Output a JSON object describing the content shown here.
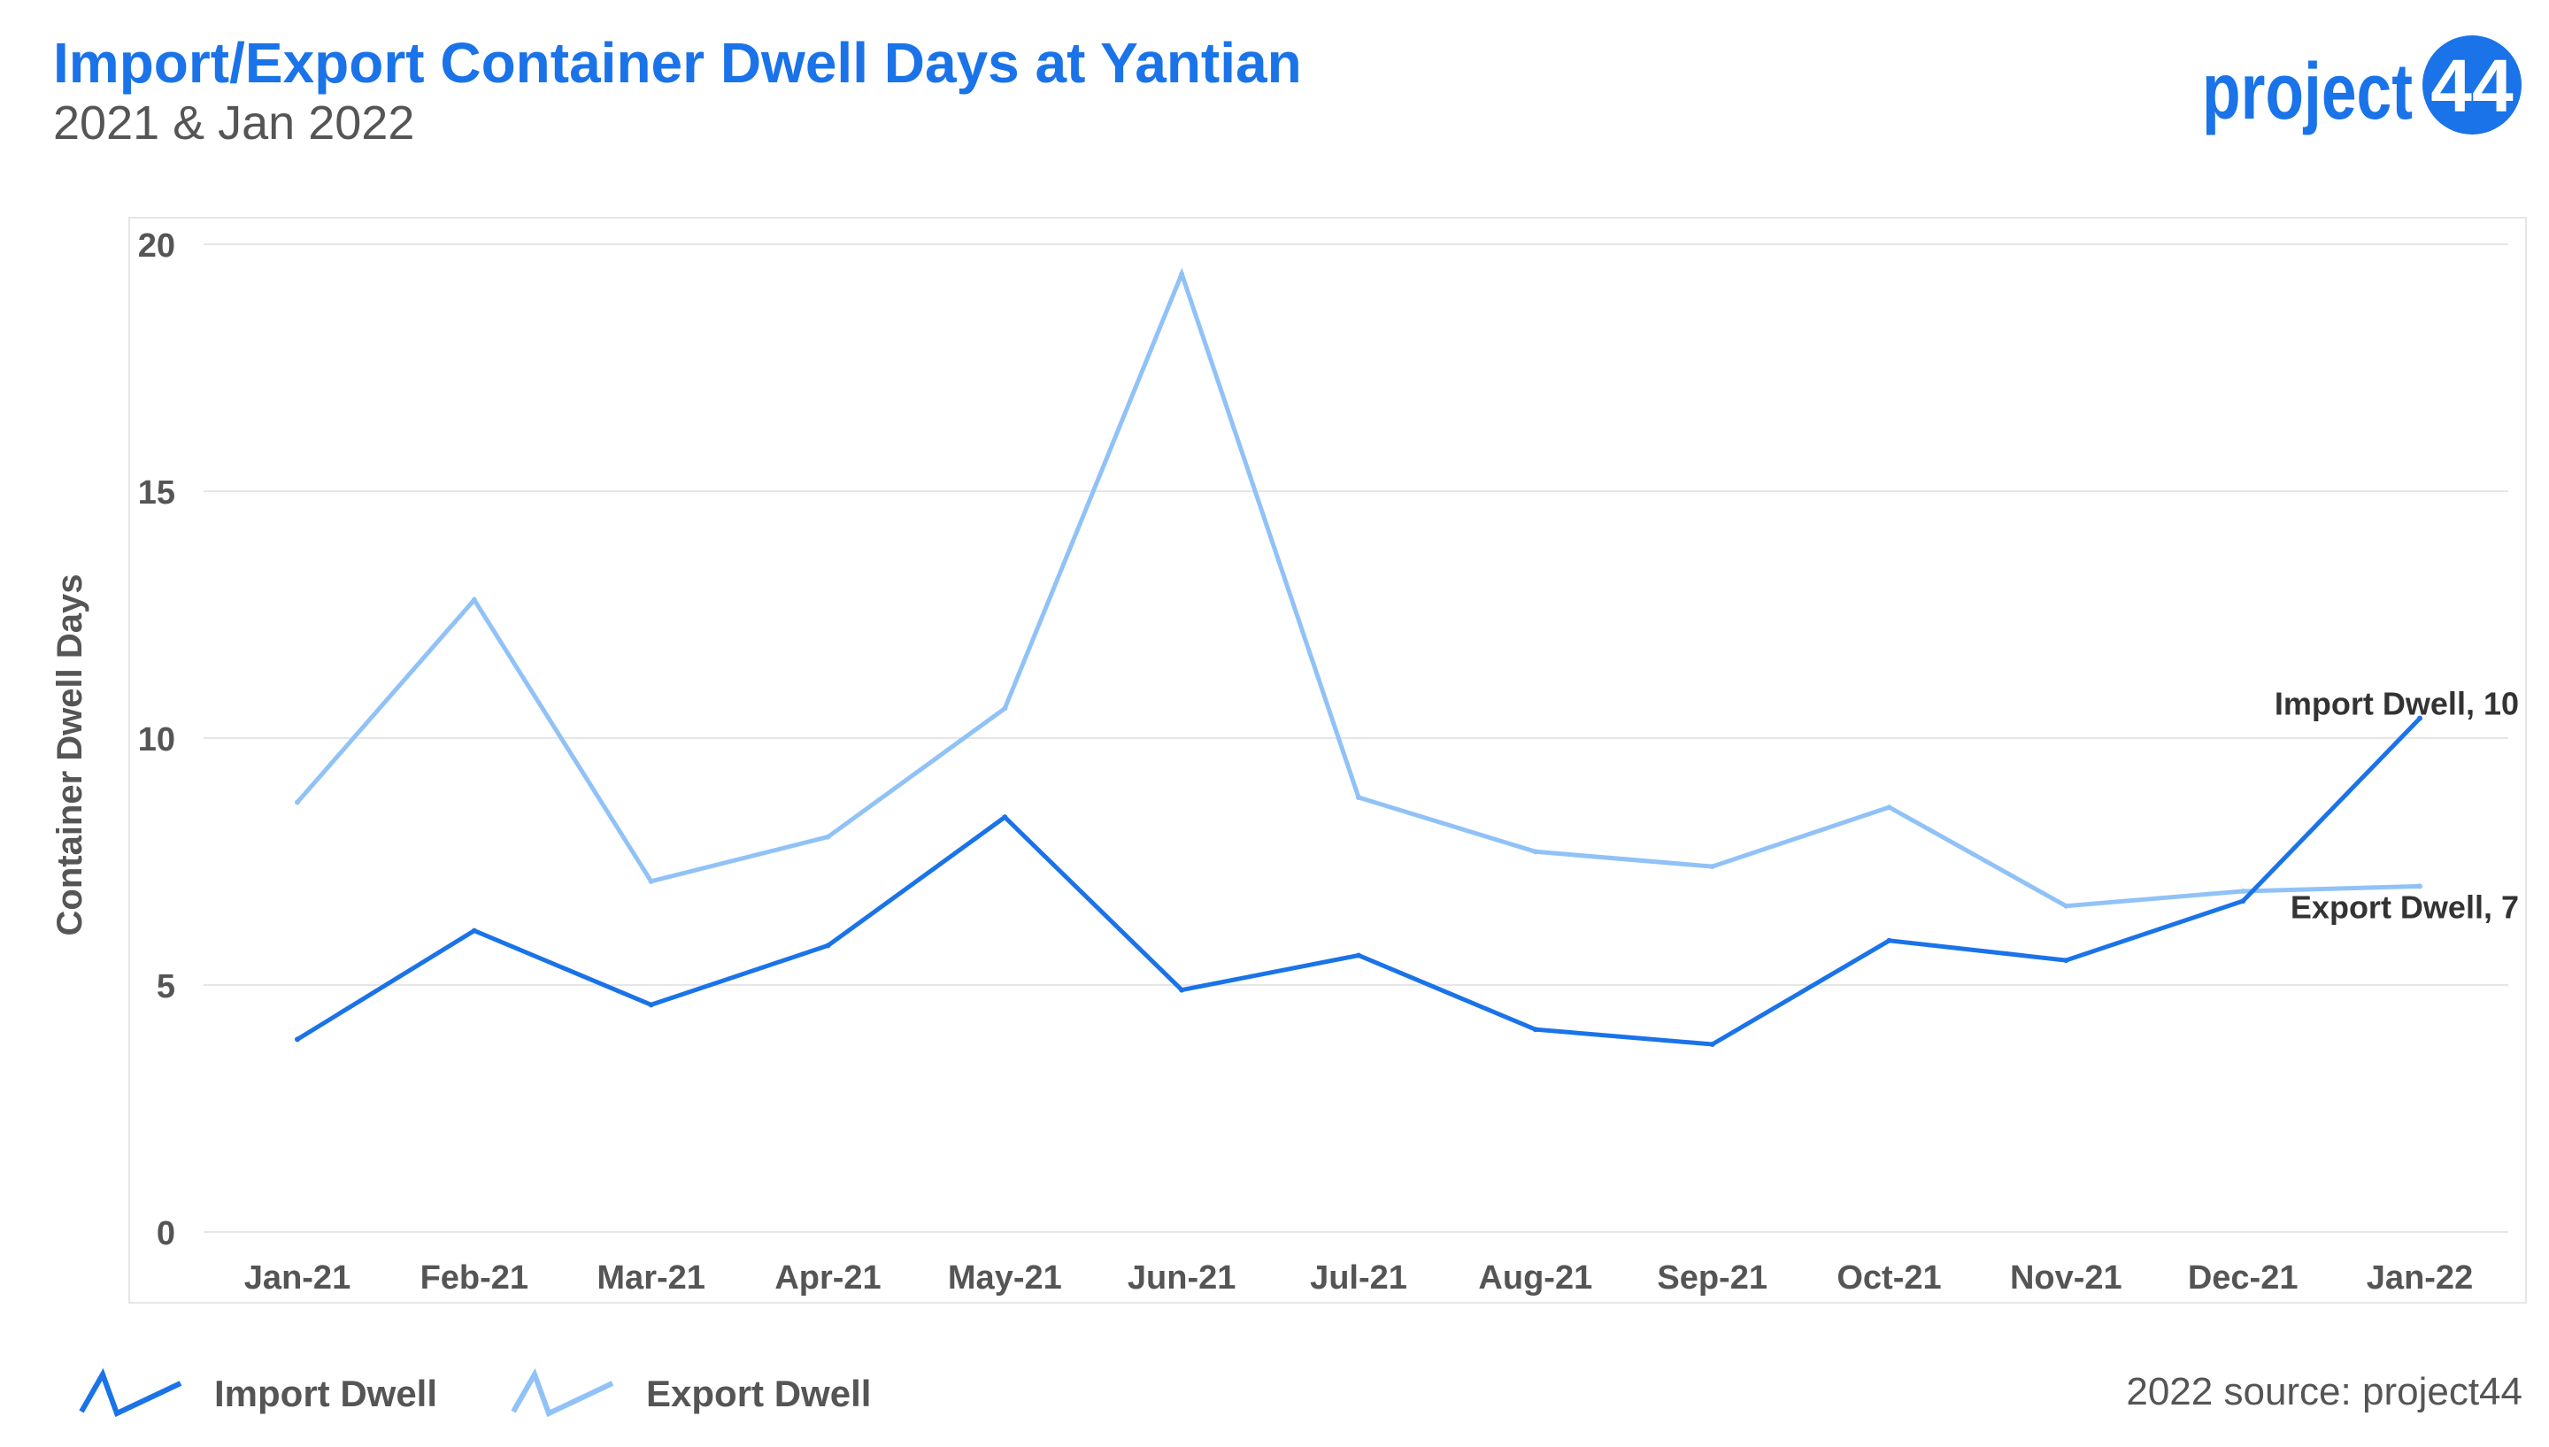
{
  "header": {
    "title": "Import/Export Container Dwell Days at Yantian",
    "subtitle": "2021 & Jan 2022",
    "logo_text": "project44"
  },
  "footer": {
    "source": "2022 source: project44"
  },
  "colors": {
    "title": "#1a73e8",
    "import_series": "#1a73e8",
    "export_series": "#90c2f7",
    "text_gray": "#555555",
    "grid": "#e6e6e6"
  },
  "chart_data": {
    "type": "line",
    "ylabel": "Container Dwell Days",
    "xlabel": "",
    "ylim": [
      0,
      20
    ],
    "yticks": [
      0,
      5,
      10,
      15,
      20
    ],
    "grid": true,
    "legend_position": "bottom-left",
    "categories": [
      "Jan-21",
      "Feb-21",
      "Mar-21",
      "Apr-21",
      "May-21",
      "Jun-21",
      "Jul-21",
      "Aug-21",
      "Sep-21",
      "Oct-21",
      "Nov-21",
      "Dec-21",
      "Jan-22"
    ],
    "series": [
      {
        "name": "Import Dwell",
        "values": [
          3.9,
          6.1,
          4.6,
          5.8,
          8.4,
          4.9,
          5.6,
          4.1,
          3.8,
          5.9,
          5.5,
          6.7,
          10.4
        ],
        "end_label": "Import Dwell, 10"
      },
      {
        "name": "Export Dwell",
        "values": [
          8.7,
          12.8,
          7.1,
          8.0,
          10.6,
          19.4,
          8.8,
          7.7,
          7.4,
          8.6,
          6.6,
          6.9,
          7.0
        ],
        "end_label": "Export Dwell, 7"
      }
    ]
  }
}
